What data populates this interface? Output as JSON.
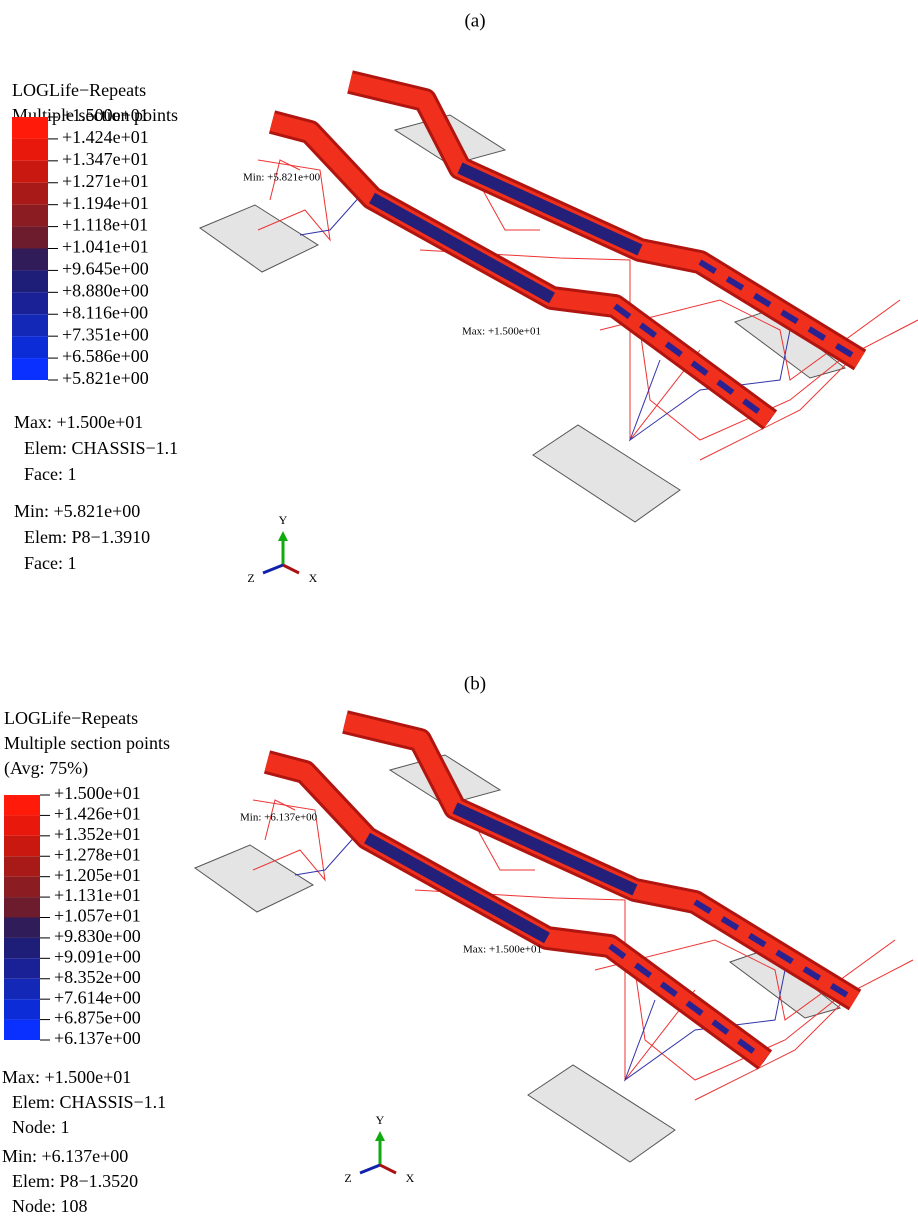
{
  "panels": [
    {
      "caption": "(a)",
      "legend_title": [
        "LOGLife−Repeats",
        "Multiple section points"
      ],
      "legend_labels": [
        "+1.500e+01",
        "+1.424e+01",
        "+1.347e+01",
        "+1.271e+01",
        "+1.194e+01",
        "+1.118e+01",
        "+1.041e+01",
        "+9.645e+00",
        "+8.880e+00",
        "+8.116e+00",
        "+7.351e+00",
        "+6.586e+00",
        "+5.821e+00"
      ],
      "max_info": [
        "Max: +1.500e+01",
        "Elem: CHASSIS−1.1",
        "Face: 1"
      ],
      "min_info": [
        "Min: +5.821e+00",
        "Elem: P8−1.3910",
        "Face: 1"
      ],
      "min_annotation": "Min: +5.821e+00",
      "max_annotation": "Max: +1.500e+01",
      "triad": {
        "y": "Y",
        "z": "Z",
        "x": "X"
      }
    },
    {
      "caption": "(b)",
      "legend_title": [
        "LOGLife−Repeats",
        "Multiple section points",
        "(Avg: 75%)"
      ],
      "legend_labels": [
        "+1.500e+01",
        "+1.426e+01",
        "+1.352e+01",
        "+1.278e+01",
        "+1.205e+01",
        "+1.131e+01",
        "+1.057e+01",
        "+9.830e+00",
        "+9.091e+00",
        "+8.352e+00",
        "+7.614e+00",
        "+6.875e+00",
        "+6.137e+00"
      ],
      "max_info": [
        "Max: +1.500e+01",
        "Elem: CHASSIS−1.1",
        "Node: 1"
      ],
      "min_info": [
        "Min: +6.137e+00",
        "Elem: P8−1.3520",
        "Node: 108"
      ],
      "min_annotation": "Min: +6.137e+00",
      "max_annotation": "Max: +1.500e+01",
      "triad": {
        "y": "Y",
        "z": "Z",
        "x": "X"
      }
    }
  ]
}
